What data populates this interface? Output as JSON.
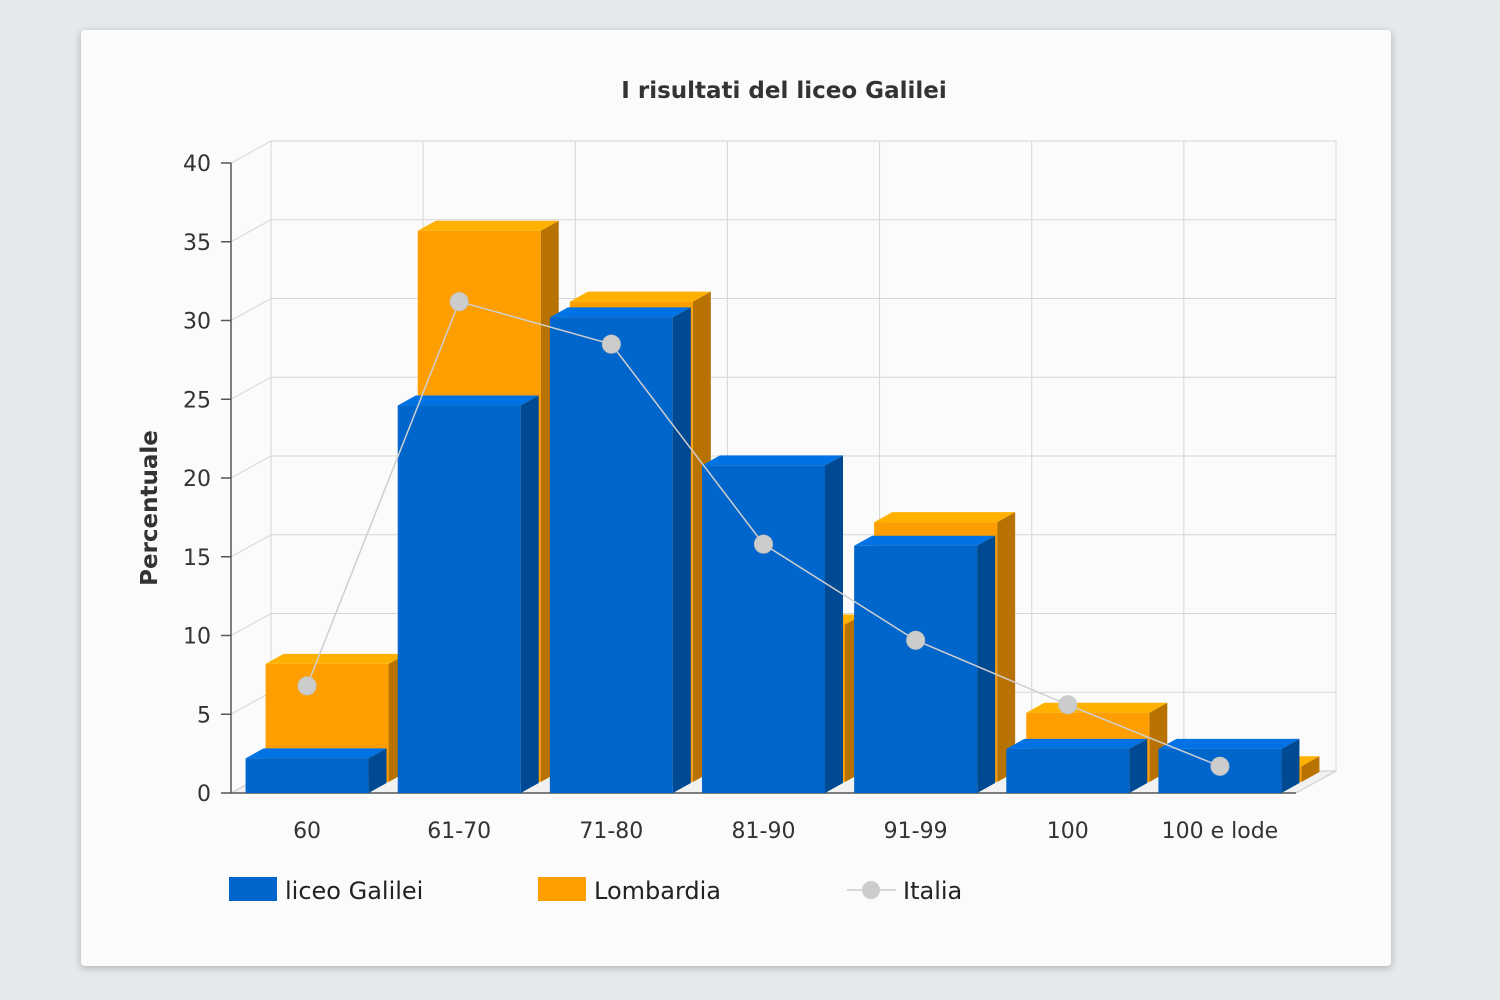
{
  "chart_data": {
    "type": "bar",
    "title": "I risultati del liceo Galilei",
    "xlabel": "",
    "ylabel": "Percentuale",
    "ylim": [
      0,
      40
    ],
    "yticks": [
      0,
      5,
      10,
      15,
      20,
      25,
      30,
      35,
      40
    ],
    "categories": [
      "60",
      "61-70",
      "71-80",
      "81-90",
      "91-99",
      "100",
      "100 e lode"
    ],
    "grid": true,
    "legend_position": "bottom-left",
    "series": [
      {
        "name": "liceo Galilei",
        "kind": "bar",
        "color": "#0066cc",
        "values": [
          2.2,
          24.6,
          30.2,
          20.8,
          15.7,
          2.8,
          2.8
        ]
      },
      {
        "name": "Lombardia",
        "kind": "bar",
        "color": "#ff9e01",
        "values": [
          7.5,
          35,
          30.5,
          10,
          16.5,
          4.4,
          1
        ]
      },
      {
        "name": "Italia",
        "kind": "line",
        "color": "#cccccc",
        "values": [
          6.8,
          31.2,
          28.5,
          15.8,
          9.7,
          5.6,
          1.7
        ]
      }
    ]
  }
}
